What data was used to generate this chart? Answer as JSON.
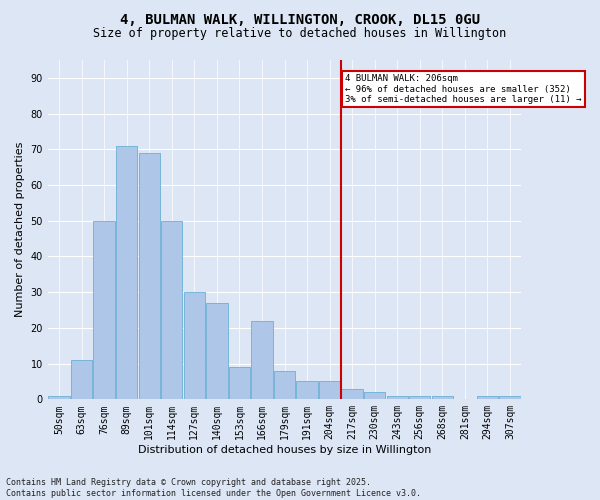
{
  "title": "4, BULMAN WALK, WILLINGTON, CROOK, DL15 0GU",
  "subtitle": "Size of property relative to detached houses in Willington",
  "xlabel": "Distribution of detached houses by size in Willington",
  "ylabel": "Number of detached properties",
  "categories": [
    "50sqm",
    "63sqm",
    "76sqm",
    "89sqm",
    "101sqm",
    "114sqm",
    "127sqm",
    "140sqm",
    "153sqm",
    "166sqm",
    "179sqm",
    "191sqm",
    "204sqm",
    "217sqm",
    "230sqm",
    "243sqm",
    "256sqm",
    "268sqm",
    "281sqm",
    "294sqm",
    "307sqm"
  ],
  "values": [
    1,
    11,
    50,
    71,
    69,
    50,
    30,
    27,
    9,
    22,
    8,
    5,
    5,
    3,
    2,
    1,
    1,
    1,
    0,
    1,
    1
  ],
  "bar_color": "#aec6e8",
  "bar_edgecolor": "#6baed6",
  "bar_linewidth": 0.6,
  "vline_x_index": 12.5,
  "vline_color": "#cc0000",
  "vline_linewidth": 1.5,
  "annotation_text": "4 BULMAN WALK: 206sqm\n← 96% of detached houses are smaller (352)\n3% of semi-detached houses are larger (11) →",
  "annotation_box_color": "#cc0000",
  "background_color": "#dce6f5",
  "plot_bg_color": "#dce6f5",
  "ylim": [
    0,
    95
  ],
  "yticks": [
    0,
    10,
    20,
    30,
    40,
    50,
    60,
    70,
    80,
    90
  ],
  "footer": "Contains HM Land Registry data © Crown copyright and database right 2025.\nContains public sector information licensed under the Open Government Licence v3.0.",
  "title_fontsize": 10,
  "subtitle_fontsize": 8.5,
  "tick_fontsize": 7,
  "label_fontsize": 8,
  "footer_fontsize": 6
}
